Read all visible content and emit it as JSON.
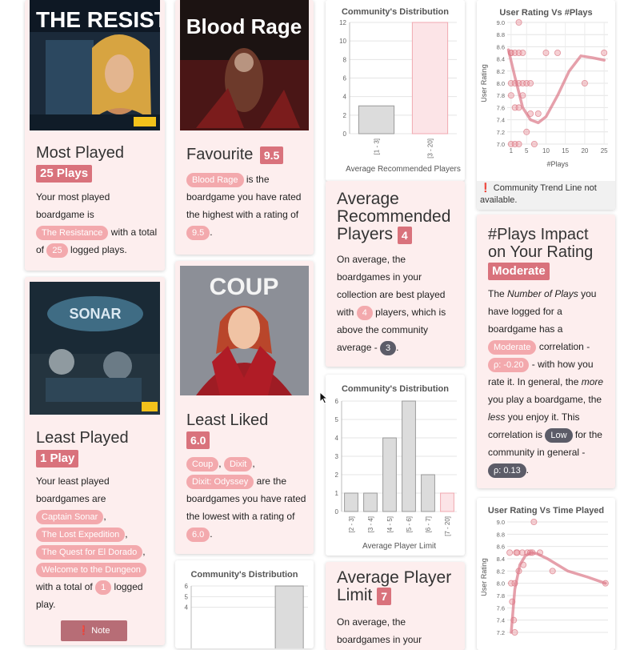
{
  "most_played": {
    "cover_title": "THE RESISTANCE",
    "heading": "Most Played",
    "badge": "25 Plays",
    "text_a": "Your most played boardgame is",
    "game": "The Resistance",
    "text_b": "with a total of",
    "count": "25",
    "text_c": "logged plays."
  },
  "favourite": {
    "cover_title": "Blood Rage",
    "heading": "Favourite",
    "rating": "9.5",
    "game": "Blood Rage",
    "text_a": "is the boardgame you have rated the highest with a rating of",
    "value": "9.5",
    "text_end": "."
  },
  "least_played": {
    "cover_title": "SONAR",
    "heading": "Least Played",
    "badge": "1 Play",
    "text_a": "Your least played boardgames are",
    "games": [
      "Captain Sonar",
      "The Lost Expedition",
      "The Quest for El Dorado",
      "Welcome to the Dungeon"
    ],
    "text_b": "with a total of",
    "count": "1",
    "text_c": "logged play.",
    "note_label": "Note",
    "note_icon": "exclamation-circle-icon"
  },
  "least_liked": {
    "cover_title": "COUP",
    "heading": "Least Liked",
    "rating": "6.0",
    "games": [
      "Coup",
      "Dixit",
      "Dixit: Odyssey"
    ],
    "text_a": "are the boardgames you have rated the lowest with a rating of",
    "value": "6.0",
    "text_end": "."
  },
  "avg_rec_players": {
    "heading_line1": "Average",
    "heading_line2": "Recommended",
    "heading_line3": "Players",
    "badge": "4",
    "text_a": "On average, the boardgames in your collection are best played with",
    "value": "4",
    "text_b": "players, which is above the community average -",
    "community": "3",
    "text_end": "."
  },
  "avg_player_limit": {
    "heading_line1": "Average Player",
    "heading_line2": "Limit",
    "badge": "7",
    "text_a": "On average, the boardgames in your"
  },
  "plays_impact": {
    "heading_line1": "#Plays Impact",
    "heading_line2": "on Your Rating",
    "badge": "Moderate",
    "t1": "The",
    "t1_em": "Number of Plays",
    "t2": "you have logged for a boardgame has a",
    "level": "Moderate",
    "t3": "correlation -",
    "rho": "ρ: -0.20",
    "t4": "- with how you rate it. In general, the",
    "t4_em": "more",
    "t5": "you play a boardgame, the",
    "t5_em": "less",
    "t6": "you enjoy it. This correlation is",
    "community_level": "Low",
    "t7": "for the community in general -",
    "community_rho": "ρ: 0.13",
    "t8": "."
  },
  "trend_note": {
    "icon": "exclamation-circle-icon",
    "text": "Community Trend Line not available."
  },
  "chart_data": [
    {
      "type": "bar",
      "title": "Community's Distribution",
      "xlabel": "Average Recommended Players",
      "categories": [
        "[1 - 3]",
        "[3 - 20]"
      ],
      "values": [
        3,
        12
      ],
      "highlight": [
        false,
        true
      ],
      "ylim": [
        0,
        12
      ],
      "yticks": [
        0,
        2,
        4,
        6,
        8,
        10,
        12
      ]
    },
    {
      "type": "bar",
      "title": "Community's Distribution",
      "xlabel": "Average Player Limit",
      "categories": [
        "[2 - 3]",
        "[3 - 4]",
        "[4 - 5]",
        "[5 - 6]",
        "[6 - 7]",
        "[7 - 20]"
      ],
      "values": [
        1,
        1,
        4,
        6,
        2,
        1
      ],
      "highlight": [
        false,
        false,
        false,
        false,
        false,
        true
      ],
      "ylim": [
        0,
        6
      ],
      "yticks": [
        0,
        1,
        2,
        3,
        4,
        5,
        6
      ]
    },
    {
      "type": "bar",
      "title": "Community's Distribution",
      "values": [
        6
      ],
      "ylim": [
        0,
        6
      ],
      "yticks": [
        4,
        5,
        6
      ]
    },
    {
      "type": "scatter",
      "title": "User Rating Vs #Plays",
      "xlabel": "#Plays",
      "ylabel": "User Rating",
      "xlim": [
        0,
        26
      ],
      "ylim": [
        7.0,
        9.0
      ],
      "xticks": [
        1,
        5,
        10,
        15,
        20,
        25
      ],
      "yticks": [
        7.0,
        7.2,
        7.4,
        7.6,
        7.8,
        8.0,
        8.2,
        8.4,
        8.6,
        8.8,
        9.0
      ],
      "points": [
        [
          1,
          8.5
        ],
        [
          1,
          8.5
        ],
        [
          1,
          8.0
        ],
        [
          1,
          7.8
        ],
        [
          1,
          7.0
        ],
        [
          2,
          8.5
        ],
        [
          2,
          8.0
        ],
        [
          2,
          7.6
        ],
        [
          2,
          7.0
        ],
        [
          3,
          9.0
        ],
        [
          3,
          8.5
        ],
        [
          3,
          8.0
        ],
        [
          3,
          7.6
        ],
        [
          3,
          7.0
        ],
        [
          4,
          8.5
        ],
        [
          4,
          8.0
        ],
        [
          4,
          7.8
        ],
        [
          5,
          7.2
        ],
        [
          5,
          8.0
        ],
        [
          6,
          7.5
        ],
        [
          6,
          8.0
        ],
        [
          7,
          7.0
        ],
        [
          8,
          7.5
        ],
        [
          10,
          8.5
        ],
        [
          13,
          8.5
        ],
        [
          20,
          8.0
        ],
        [
          25,
          8.5
        ]
      ],
      "trend": [
        [
          0.3,
          8.55
        ],
        [
          2,
          8.1
        ],
        [
          4,
          7.6
        ],
        [
          6,
          7.4
        ],
        [
          8,
          7.35
        ],
        [
          10,
          7.45
        ],
        [
          13,
          7.8
        ],
        [
          16,
          8.2
        ],
        [
          19,
          8.45
        ],
        [
          22,
          8.42
        ],
        [
          25,
          8.38
        ]
      ]
    },
    {
      "type": "scatter",
      "title": "User Rating Vs Time Played",
      "ylabel": "User Rating",
      "xlim": [
        0,
        20
      ],
      "ylim": [
        7.2,
        9.0
      ],
      "yticks": [
        7.2,
        7.4,
        7.6,
        7.8,
        8.0,
        8.2,
        8.4,
        8.6,
        8.8,
        9.0
      ],
      "points": [
        [
          0.5,
          8.5
        ],
        [
          0.8,
          8.0
        ],
        [
          1,
          7.7
        ],
        [
          1.3,
          7.4
        ],
        [
          1.5,
          7.2
        ],
        [
          1.5,
          8.0
        ],
        [
          1.8,
          8.5
        ],
        [
          2,
          8.5
        ],
        [
          2.3,
          8.2
        ],
        [
          3,
          8.5
        ],
        [
          3.2,
          8.3
        ],
        [
          4,
          8.5
        ],
        [
          4.6,
          8.5
        ],
        [
          5,
          8.5
        ],
        [
          5.3,
          9.0
        ],
        [
          6.5,
          8.5
        ],
        [
          9,
          8.2
        ],
        [
          19.5,
          8.0
        ]
      ],
      "trend": [
        [
          0.8,
          7.2
        ],
        [
          1.5,
          7.9
        ],
        [
          2.5,
          8.3
        ],
        [
          3.6,
          8.45
        ],
        [
          4.8,
          8.5
        ],
        [
          6,
          8.48
        ],
        [
          8,
          8.4
        ],
        [
          12,
          8.2
        ],
        [
          16,
          8.1
        ],
        [
          19.5,
          8.0
        ]
      ]
    }
  ]
}
